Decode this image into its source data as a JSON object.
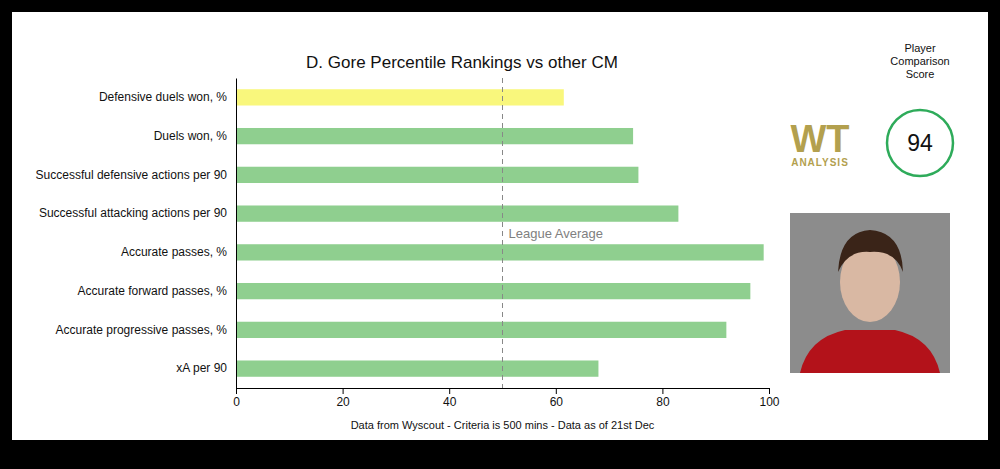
{
  "chart_data": {
    "type": "bar",
    "orientation": "horizontal",
    "title": "D. Gore Percentile Rankings vs other CM",
    "categories": [
      "Defensive duels won, %",
      "Duels won, %",
      "Successful defensive actions per 90",
      "Successful attacking actions per 90",
      "Accurate passes, %",
      "Accurate forward passes, %",
      "Accurate progressive passes, %",
      "xA per 90"
    ],
    "values": [
      61.5,
      74.5,
      75.5,
      83,
      99,
      96.5,
      92,
      68
    ],
    "colors": [
      "#f9f77c",
      "#8fcf8f",
      "#8fcf8f",
      "#8fcf8f",
      "#8fcf8f",
      "#8fcf8f",
      "#8fcf8f",
      "#8fcf8f"
    ],
    "xlim": [
      0,
      100
    ],
    "xticks": [
      0,
      20,
      40,
      60,
      80,
      100
    ],
    "grid": false,
    "data_labels": false,
    "reference_line": {
      "value": 50,
      "label": "League Average"
    },
    "caption": "Data from Wyscout - Criteria is 500 mins - Data as of 21st Dec",
    "score": {
      "label": "Player Comparison Score",
      "value": 94
    },
    "logo": {
      "title": "WT",
      "subtitle": "ANALYSIS"
    }
  }
}
